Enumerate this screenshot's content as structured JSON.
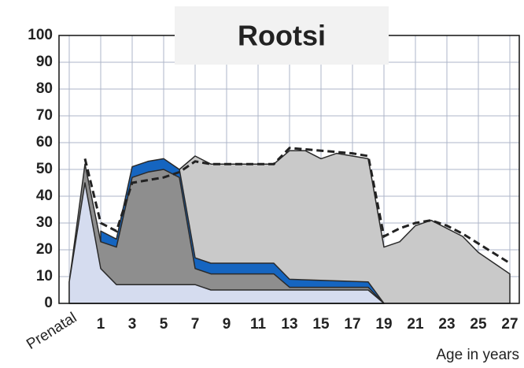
{
  "chart_data": {
    "type": "area",
    "title": "Rootsi",
    "x_label": "Age in years",
    "xlim": [
      -1.65,
      27.6
    ],
    "ylim": [
      0,
      100
    ],
    "xticks": [
      {
        "value": -1,
        "label": "Prenatal"
      },
      1,
      3,
      5,
      7,
      9,
      11,
      13,
      15,
      17,
      19,
      21,
      23,
      25,
      27
    ],
    "yticks": [
      0,
      10,
      20,
      30,
      40,
      50,
      60,
      70,
      80,
      90,
      100
    ],
    "grid": true,
    "series": [
      {
        "color": "#c9c9c9",
        "x": [
          6,
          7,
          8,
          10,
          12,
          13,
          14,
          15,
          16,
          17,
          18,
          19,
          20,
          21,
          22,
          23,
          24,
          25,
          26,
          27
        ],
        "values": [
          50,
          55,
          52,
          52,
          52,
          57,
          57,
          54,
          56,
          55,
          54,
          21,
          23,
          29,
          31,
          28,
          25,
          19,
          15,
          11
        ]
      },
      {
        "color": "#1565c0",
        "x": [
          1,
          2,
          3,
          4,
          5,
          6,
          7,
          8,
          12,
          13,
          18,
          19
        ],
        "values": [
          27,
          24,
          51,
          53,
          54,
          50,
          17,
          15,
          15,
          9,
          8,
          0
        ]
      },
      {
        "color": "#8e8e8e",
        "x": [
          -1,
          0,
          1,
          2,
          3,
          4,
          5,
          6,
          7,
          8,
          12,
          13,
          18,
          19
        ],
        "values": [
          8,
          52,
          23,
          21,
          47,
          49,
          50,
          47,
          13,
          11,
          11,
          6,
          6,
          0
        ]
      },
      {
        "color": "#d5dcef",
        "x": [
          -1,
          0,
          1,
          2,
          6,
          7,
          8,
          18,
          19
        ],
        "values": [
          8,
          45,
          13,
          7,
          7,
          7,
          5,
          5,
          0
        ]
      },
      {
        "color": "#222222",
        "dashed": true,
        "x": [
          0,
          1,
          2,
          3,
          5,
          6,
          7,
          8,
          12,
          13,
          17,
          18,
          19,
          20,
          21,
          22,
          23,
          24,
          27
        ],
        "values": [
          54,
          30,
          27,
          45,
          47,
          49,
          53,
          52,
          52,
          58,
          56,
          55,
          25,
          28,
          30,
          31,
          29,
          26,
          15
        ]
      }
    ]
  }
}
